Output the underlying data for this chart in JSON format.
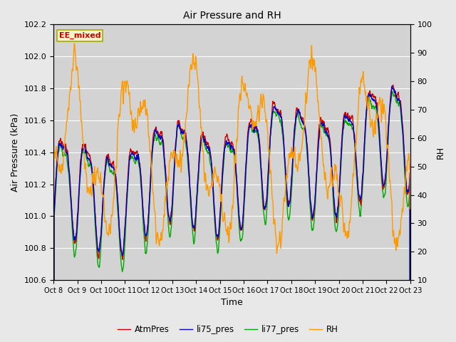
{
  "title": "Air Pressure and RH",
  "xlabel": "Time",
  "ylabel_left": "Air Pressure (kPa)",
  "ylabel_right": "RH",
  "annotation": "EE_mixed",
  "x_tick_labels": [
    "Oct 8",
    "Oct 9",
    "Oct 10",
    "Oct 11",
    "Oct 12",
    "Oct 13",
    "Oct 14",
    "Oct 15",
    "Oct 16",
    "Oct 17",
    "Oct 18",
    "Oct 19",
    "Oct 20",
    "Oct 21",
    "Oct 22",
    "Oct 23"
  ],
  "ylim_left": [
    100.6,
    102.2
  ],
  "ylim_right": [
    10,
    100
  ],
  "yticks_left": [
    100.6,
    100.8,
    101.0,
    101.2,
    101.4,
    101.6,
    101.8,
    102.0,
    102.2
  ],
  "yticks_right": [
    10,
    20,
    30,
    40,
    50,
    60,
    70,
    80,
    90,
    100
  ],
  "colors": {
    "AtmPres": "#cc0000",
    "li75_pres": "#0000cc",
    "li77_pres": "#00aa00",
    "RH": "#ff9900"
  },
  "legend_labels": [
    "AtmPres",
    "li75_pres",
    "li77_pres",
    "RH"
  ],
  "background_color": "#e8e8e8",
  "plot_bg_color": "#d3d3d3",
  "grid_color": "#ffffff",
  "annotation_fg": "#cc0000",
  "annotation_bg": "#f5f5c8",
  "annotation_border": "#aaaa00",
  "n_points": 1500,
  "figsize": [
    6.4,
    4.8
  ],
  "dpi": 100
}
